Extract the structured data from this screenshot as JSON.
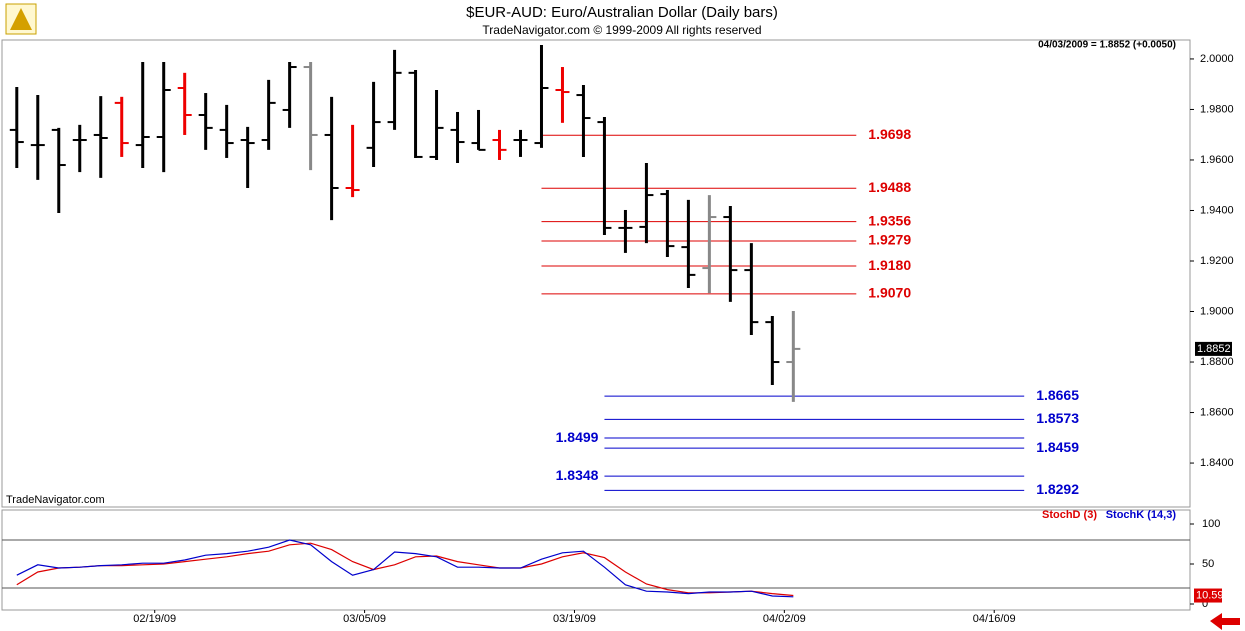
{
  "chart_data": [
    {
      "type": "ohlc",
      "title": "$EUR-AUD:  Euro/Australian Dollar  (Daily bars)",
      "subtitle": "TradeNavigator.com © 1999-2009 All rights reserved",
      "quote": "04/03/2009 = 1.8852 (+0.0050)",
      "watermark": "TradeNavigator.com",
      "xlim": [
        -0.8,
        55.9
      ],
      "ylim": [
        1.8226,
        2.0075
      ],
      "yticks": [
        {
          "value": 1.84,
          "label": "1.8400"
        },
        {
          "value": 1.86,
          "label": "1.8600"
        },
        {
          "value": 1.88,
          "label": "1.8800"
        },
        {
          "value": 1.9,
          "label": "1.9000"
        },
        {
          "value": 1.92,
          "label": "1.9200"
        },
        {
          "value": 1.94,
          "label": "1.9400"
        },
        {
          "value": 1.96,
          "label": "1.9600"
        },
        {
          "value": 1.98,
          "label": "1.9800"
        },
        {
          "value": 2.0,
          "label": "2.0000"
        }
      ],
      "open": [
        1.9719,
        1.9659,
        1.9719,
        1.9679,
        1.9699,
        1.9826,
        1.9659,
        1.9691,
        1.9885,
        1.9778,
        1.9719,
        1.9679,
        1.9679,
        1.9798,
        1.9968,
        1.9699,
        1.9489,
        1.9648,
        1.975,
        1.9945,
        1.9612,
        1.9719,
        1.9667,
        1.9679,
        1.9679,
        1.9667,
        1.9877,
        1.9857,
        1.975,
        1.9331,
        1.9335,
        1.9465,
        1.9255,
        1.9172,
        1.9374,
        1.9164,
        1.8958,
        1.88
      ],
      "high": [
        1.9889,
        1.9857,
        1.9727,
        1.9739,
        1.9853,
        1.985,
        1.9988,
        1.9988,
        1.9945,
        1.9865,
        1.9818,
        1.9731,
        1.9917,
        1.9988,
        1.9988,
        1.985,
        1.9739,
        1.9909,
        2.0036,
        1.9956,
        1.9877,
        1.979,
        1.9798,
        1.9719,
        1.9719,
        2.0055,
        1.9968,
        1.9897,
        1.977,
        1.9402,
        1.9588,
        1.9481,
        1.9442,
        1.9461,
        1.9418,
        1.9271,
        1.8982,
        1.9002
      ],
      "low": [
        1.9568,
        1.9521,
        1.939,
        1.9552,
        1.9529,
        1.9612,
        1.9568,
        1.9552,
        1.9699,
        1.964,
        1.9608,
        1.9489,
        1.964,
        1.9727,
        1.956,
        1.9362,
        1.9453,
        1.9572,
        1.9719,
        1.9608,
        1.96,
        1.9588,
        1.964,
        1.96,
        1.9612,
        1.9648,
        1.9747,
        1.9612,
        1.9303,
        1.9232,
        1.9271,
        1.9216,
        1.9093,
        1.9073,
        1.9038,
        1.8907,
        1.8709,
        1.8642
      ],
      "close": [
        1.9671,
        1.9659,
        1.958,
        1.9679,
        1.9687,
        1.9667,
        1.9691,
        1.9877,
        1.9778,
        1.9727,
        1.9667,
        1.9667,
        1.9826,
        1.9968,
        1.9699,
        1.9489,
        1.9481,
        1.975,
        1.9945,
        1.9612,
        1.9727,
        1.9671,
        1.964,
        1.964,
        1.9679,
        1.9885,
        1.9869,
        1.9766,
        1.9331,
        1.9331,
        1.9461,
        1.9259,
        1.9145,
        1.9374,
        1.9164,
        1.8958,
        1.88,
        1.8852
      ],
      "bar_colors": [
        "#000000",
        "#000000",
        "#000000",
        "#000000",
        "#000000",
        "#ee0000",
        "#000000",
        "#000000",
        "#ee0000",
        "#000000",
        "#000000",
        "#000000",
        "#000000",
        "#000000",
        "#888888",
        "#000000",
        "#ee0000",
        "#000000",
        "#000000",
        "#000000",
        "#000000",
        "#000000",
        "#000000",
        "#ee0000",
        "#000000",
        "#000000",
        "#ee0000",
        "#000000",
        "#000000",
        "#000000",
        "#000000",
        "#000000",
        "#000000",
        "#888888",
        "#000000",
        "#000000",
        "#000000",
        "#888888"
      ],
      "levels": [
        {
          "value": 1.9698,
          "color": "#dd0000",
          "x_start": 25,
          "x_end": 40,
          "label_side": "right"
        },
        {
          "value": 1.9488,
          "color": "#dd0000",
          "x_start": 25,
          "x_end": 40,
          "label_side": "right"
        },
        {
          "value": 1.9356,
          "color": "#dd0000",
          "x_start": 25,
          "x_end": 40,
          "label_side": "right"
        },
        {
          "value": 1.9279,
          "color": "#dd0000",
          "x_start": 25,
          "x_end": 40,
          "label_side": "right"
        },
        {
          "value": 1.918,
          "label": "1.9180",
          "color": "#dd0000",
          "x_start": 25,
          "x_end": 40,
          "label_side": "right"
        },
        {
          "value": 1.907,
          "label": "1.9070",
          "color": "#dd0000",
          "x_start": 25,
          "x_end": 40,
          "label_side": "right"
        },
        {
          "value": 1.8665,
          "color": "#0000cc",
          "x_start": 28,
          "x_end": 48,
          "label_side": "right"
        },
        {
          "value": 1.8573,
          "color": "#0000cc",
          "x_start": 28,
          "x_end": 48,
          "label_side": "right"
        },
        {
          "value": 1.8499,
          "color": "#0000cc",
          "x_start": 28,
          "x_end": 48,
          "label_side": "left"
        },
        {
          "value": 1.8459,
          "color": "#0000cc",
          "x_start": 28,
          "x_end": 48,
          "label_side": "right"
        },
        {
          "value": 1.8348,
          "color": "#0000cc",
          "x_start": 28,
          "x_end": 48,
          "label_side": "left"
        },
        {
          "value": 1.8292,
          "color": "#0000cc",
          "x_start": 28,
          "x_end": 48,
          "label_side": "right"
        }
      ]
    },
    {
      "type": "line",
      "xlim": [
        -0.8,
        55.9
      ],
      "ylim": [
        -7.5,
        117.5
      ],
      "yticks": [
        0,
        50,
        100
      ],
      "ref_lines": [
        80,
        20
      ],
      "xticks": [
        {
          "value": 6,
          "label": "02/19/09"
        },
        {
          "value": 16,
          "label": "03/05/09"
        },
        {
          "value": 26,
          "label": "03/19/09"
        },
        {
          "value": 36,
          "label": "04/02/09"
        },
        {
          "value": 46,
          "label": "04/16/09"
        }
      ],
      "series": [
        {
          "name": "StochD (3)",
          "color": "#dd0000",
          "values": [
            24,
            40,
            45,
            46,
            48,
            48,
            49,
            50,
            53,
            56,
            59,
            63,
            66,
            74,
            76,
            68,
            53,
            43,
            49,
            59,
            60,
            53,
            49,
            45,
            45,
            50,
            59,
            64,
            58,
            40,
            25,
            18,
            14,
            14,
            15,
            16,
            13,
            10.59
          ]
        },
        {
          "name": "StochK (14,3)",
          "color": "#0000cc",
          "values": [
            36,
            49,
            45,
            46,
            48,
            49,
            51,
            51,
            55,
            61,
            63,
            66,
            71,
            80,
            74,
            53,
            36,
            43,
            65,
            63,
            59,
            46,
            46,
            45,
            45,
            56,
            64,
            66,
            46,
            24,
            16,
            15,
            13,
            15,
            15,
            16,
            10,
            9
          ]
        }
      ]
    }
  ]
}
